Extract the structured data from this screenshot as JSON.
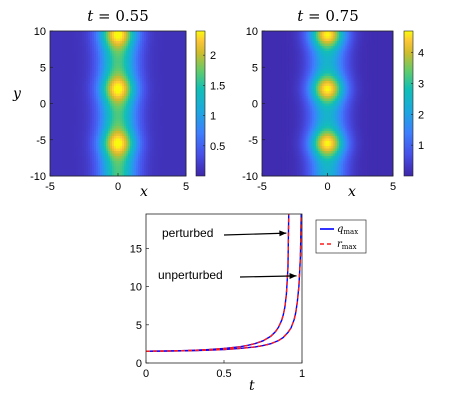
{
  "chart_data": [
    {
      "type": "heatmap",
      "title": "t = 0.55",
      "title_var": "t",
      "title_value": "0.55",
      "xlabel": "x",
      "ylabel": "y",
      "xlim": [
        -5,
        5
      ],
      "ylim": [
        -10,
        10
      ],
      "xticks": [
        "-5",
        "0",
        "5"
      ],
      "yticks": [
        "10",
        "5",
        "0",
        "-5",
        "-10"
      ],
      "colorbar": {
        "range": [
          0,
          2.4
        ],
        "ticks": [
          "2",
          "1.5",
          "1",
          "0.5"
        ],
        "tick_values": [
          2,
          1.5,
          1,
          0.5
        ]
      },
      "ridge": {
        "x_center": 0,
        "base_amplitude": 1.55,
        "peak_amplitude": 2.35,
        "peak_y": [
          -5.5,
          2,
          9.5
        ]
      }
    },
    {
      "type": "heatmap",
      "title": "t = 0.75",
      "title_var": "t",
      "title_value": "0.75",
      "xlabel": "x",
      "ylabel": "",
      "xlim": [
        -5,
        5
      ],
      "ylim": [
        -10,
        10
      ],
      "xticks": [
        "-5",
        "0",
        "5"
      ],
      "yticks": [
        "10",
        "5",
        "0",
        "-5",
        "-10"
      ],
      "colorbar": {
        "range": [
          0,
          4.7
        ],
        "ticks": [
          "4",
          "3",
          "2",
          "1"
        ],
        "tick_values": [
          4,
          3,
          2,
          1
        ]
      },
      "ridge": {
        "x_center": 0,
        "base_amplitude": 2.3,
        "peak_amplitude": 4.6,
        "peak_y": [
          -5.5,
          2,
          9.5
        ]
      }
    },
    {
      "type": "line",
      "xlabel": "t",
      "ylabel": "",
      "xlim": [
        0,
        1
      ],
      "ylim": [
        0,
        19.5
      ],
      "xticks": [
        "0",
        "0.5",
        "1"
      ],
      "yticks": [
        "15",
        "10",
        "5",
        "0"
      ],
      "series": [
        {
          "name": "q_max",
          "legend_main": "q",
          "legend_sub": "max",
          "color": "#0000ff",
          "style": "solid",
          "curves": [
            {
              "x": [
                0,
                0.1,
                0.2,
                0.3,
                0.4,
                0.5,
                0.6,
                0.65,
                0.7,
                0.75,
                0.8,
                0.83,
                0.85,
                0.87,
                0.88,
                0.89,
                0.9,
                0.91,
                0.915
              ],
              "y": [
                1.55,
                1.56,
                1.6,
                1.66,
                1.76,
                1.9,
                2.12,
                2.3,
                2.55,
                2.9,
                3.5,
                4.1,
                4.7,
                5.6,
                6.3,
                7.3,
                9.0,
                12.5,
                19.5
              ]
            },
            {
              "x": [
                0,
                0.1,
                0.2,
                0.3,
                0.4,
                0.5,
                0.6,
                0.7,
                0.75,
                0.8,
                0.85,
                0.88,
                0.91,
                0.93,
                0.95,
                0.96,
                0.97,
                0.98,
                0.99,
                0.995
              ],
              "y": [
                1.55,
                1.56,
                1.58,
                1.62,
                1.68,
                1.76,
                1.9,
                2.1,
                2.28,
                2.52,
                2.95,
                3.35,
                4.0,
                4.6,
                5.7,
                6.6,
                8.0,
                10.0,
                14.0,
                19.5
              ]
            }
          ]
        },
        {
          "name": "r_max",
          "legend_main": "r",
          "legend_sub": "max",
          "color": "#ff1a1a",
          "style": "dashed",
          "curves": [
            {
              "x": [
                0,
                0.1,
                0.2,
                0.3,
                0.4,
                0.5,
                0.6,
                0.65,
                0.7,
                0.75,
                0.8,
                0.83,
                0.85,
                0.87,
                0.88,
                0.89,
                0.9,
                0.91,
                0.915
              ],
              "y": [
                1.55,
                1.56,
                1.6,
                1.66,
                1.76,
                1.9,
                2.12,
                2.3,
                2.55,
                2.9,
                3.5,
                4.1,
                4.7,
                5.6,
                6.3,
                7.3,
                9.0,
                12.5,
                19.5
              ]
            },
            {
              "x": [
                0,
                0.1,
                0.2,
                0.3,
                0.4,
                0.5,
                0.6,
                0.7,
                0.75,
                0.8,
                0.85,
                0.88,
                0.91,
                0.93,
                0.95,
                0.96,
                0.97,
                0.98,
                0.99,
                0.995
              ],
              "y": [
                1.55,
                1.56,
                1.58,
                1.62,
                1.68,
                1.76,
                1.9,
                2.1,
                2.28,
                2.52,
                2.95,
                3.35,
                4.0,
                4.6,
                5.7,
                6.6,
                8.0,
                10.0,
                14.0,
                19.5
              ]
            }
          ]
        }
      ],
      "annotations": [
        {
          "text": "perturbed",
          "arrow_to": {
            "x": 0.9,
            "y": 17.0
          }
        },
        {
          "text": "unperturbed",
          "arrow_to": {
            "x": 0.965,
            "y": 11.4
          }
        }
      ]
    }
  ]
}
